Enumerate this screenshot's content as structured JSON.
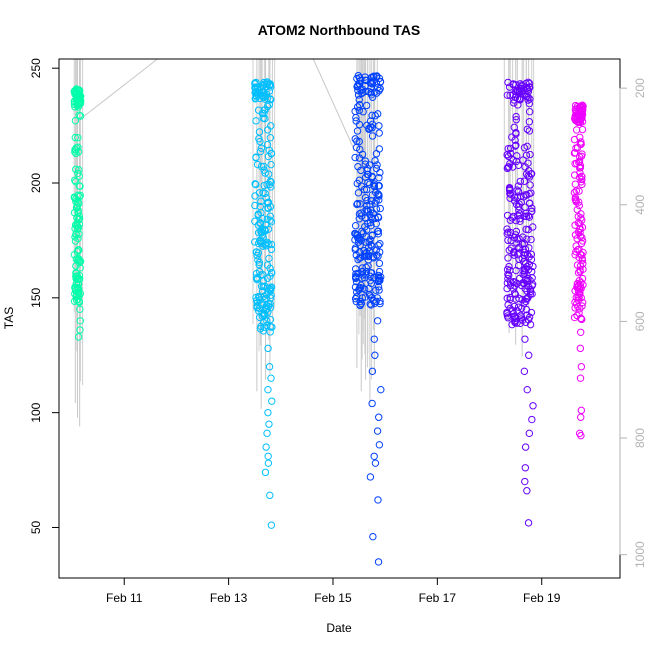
{
  "chart_data": {
    "type": "scatter",
    "title": "ATOM2 Northbound TAS",
    "xlabel": "Date",
    "ylabel": "TAS",
    "x_axis": {
      "type": "date",
      "range": [
        "2014-02-09T18:00",
        "2014-02-20T12:00"
      ],
      "tick_labels": [
        {
          "date": "2014-02-11",
          "label": "Feb 11"
        },
        {
          "date": "2014-02-13",
          "label": "Feb 13"
        },
        {
          "date": "2014-02-15",
          "label": "Feb 15"
        },
        {
          "date": "2014-02-17",
          "label": "Feb 17"
        },
        {
          "date": "2014-02-19",
          "label": "Feb 19"
        }
      ]
    },
    "y_axis": {
      "range": [
        28,
        254
      ],
      "ticks": [
        50,
        100,
        150,
        200,
        250
      ]
    },
    "y2_axis": {
      "reversed": true,
      "range": [
        1040,
        150
      ],
      "ticks": [
        200,
        400,
        600,
        800,
        1000
      ],
      "color": "#b3b3b3"
    },
    "series": [
      {
        "color": "#00ffaa",
        "x_start": "2014-02-10T01:00",
        "x_end": "2014-02-10T04:00",
        "dense_range": [
          148,
          241
        ],
        "outliers": [
          133,
          136,
          140,
          145
        ],
        "profile_lines": [
          {
            "x": "2014-02-10T01:30",
            "y2_low": 740
          },
          {
            "x": "2014-02-10T02:30",
            "y2_low": 765
          },
          {
            "x": "2014-02-10T03:30",
            "y2_low": 780
          }
        ]
      },
      {
        "color": "#00bfff",
        "x_start": "2014-02-13T12:00",
        "x_end": "2014-02-13T20:00",
        "dense_range": [
          135,
          244
        ],
        "outliers": [
          128,
          120,
          115,
          110,
          105,
          100,
          95,
          91,
          85,
          81,
          78,
          74,
          64,
          51
        ],
        "profile_lines": [
          {
            "x": "2014-02-13T13:00",
            "y2_low": 720
          },
          {
            "x": "2014-02-13T15:00",
            "y2_low": 750
          },
          {
            "x": "2014-02-13T17:00",
            "y2_low": 700
          },
          {
            "x": "2014-02-13T19:00",
            "y2_low": 690
          }
        ]
      },
      {
        "color": "#0040ff",
        "x_start": "2014-02-15T10:00",
        "x_end": "2014-02-15T22:00",
        "dense_range": [
          145,
          247
        ],
        "outliers": [
          140,
          132,
          125,
          118,
          110,
          104,
          98,
          92,
          86,
          81,
          78,
          72,
          62,
          46,
          35
        ],
        "profile_lines": [
          {
            "x": "2014-02-15T11:00",
            "y2_low": 680
          },
          {
            "x": "2014-02-15T13:00",
            "y2_low": 720
          },
          {
            "x": "2014-02-15T15:00",
            "y2_low": 700
          },
          {
            "x": "2014-02-15T17:00",
            "y2_low": 740
          },
          {
            "x": "2014-02-15T19:00",
            "y2_low": 690
          }
        ]
      },
      {
        "color": "#6600ff",
        "x_start": "2014-02-18T08:00",
        "x_end": "2014-02-18T20:00",
        "dense_range": [
          138,
          244
        ],
        "outliers": [
          132,
          125,
          118,
          110,
          103,
          97,
          91,
          85,
          76,
          70,
          66,
          52
        ],
        "profile_lines": [
          {
            "x": "2014-02-18T09:00",
            "y2_low": 620
          },
          {
            "x": "2014-02-18T12:00",
            "y2_low": 640
          },
          {
            "x": "2014-02-18T15:00",
            "y2_low": 660
          },
          {
            "x": "2014-02-18T18:00",
            "y2_low": 610
          }
        ]
      },
      {
        "color": "#ee00ff",
        "x_start": "2014-02-19T15:00",
        "x_end": "2014-02-19T19:00",
        "dense_range": [
          140,
          234
        ],
        "outliers": [
          135,
          128,
          120,
          115,
          101,
          98,
          91,
          90
        ]
      }
    ],
    "transit_lines": [
      {
        "from": {
          "x": "2014-02-10T04:00",
          "y": 228
        },
        "to": {
          "x": "2014-02-11T18:00",
          "y": 256
        }
      },
      {
        "from": {
          "x": "2014-02-14T14:00",
          "y": 256
        },
        "to": {
          "x": "2014-02-15T10:00",
          "y": 214
        }
      }
    ],
    "grid": false,
    "legend": "none"
  }
}
